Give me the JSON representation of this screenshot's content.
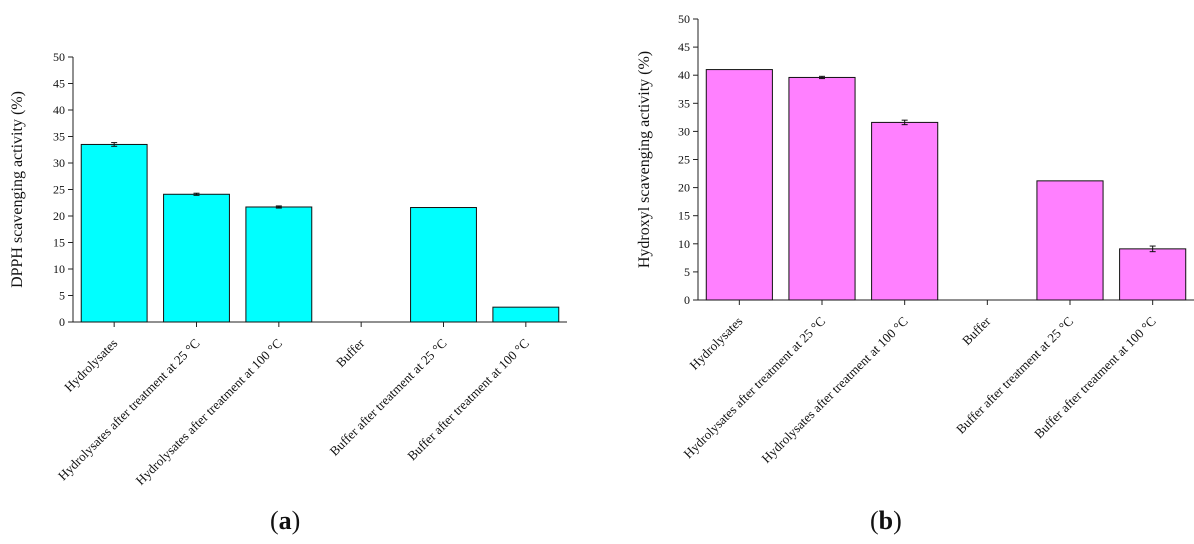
{
  "chart_data": [
    {
      "type": "bar",
      "panel_caption_open": "(",
      "panel_caption_letter": "a",
      "panel_caption_close": ")",
      "ylabel": "DPPH scavenging activity (%)",
      "ylim": [
        0,
        50
      ],
      "yticks": [
        "0",
        "5",
        "10",
        "15",
        "20",
        "25",
        "30",
        "35",
        "40",
        "45",
        "50"
      ],
      "bar_color": "#00ffff",
      "categories": [
        "Hydrolysates",
        "Hydrolysates after treatment at 25 °C",
        "Hydrolysates after treatment at 100 °C",
        "Buffer",
        "Buffer after treatment at 25 °C",
        "Buffer after treatment at 100 °C"
      ],
      "values": [
        33.5,
        24.1,
        21.7,
        0,
        21.6,
        2.8
      ],
      "errors": [
        0.35,
        0.2,
        0.2,
        0,
        0,
        0
      ]
    },
    {
      "type": "bar",
      "panel_caption_open": "(",
      "panel_caption_letter": "b",
      "panel_caption_close": ")",
      "ylabel": "Hydroxyl scavenging activity (%)",
      "ylim": [
        0,
        50
      ],
      "yticks": [
        "0",
        "5",
        "10",
        "15",
        "20",
        "25",
        "30",
        "35",
        "40",
        "45",
        "50"
      ],
      "bar_color": "#ff80ff",
      "categories": [
        "Hydrolysates",
        "Hydrolysates after treatment at 25 °C",
        "Hydrolysates after treatment at 100 °C",
        "Buffer",
        "Buffer after treatment at 25 °C",
        "Buffer after treatment at 100 °C"
      ],
      "values": [
        41.0,
        39.6,
        31.6,
        0,
        21.2,
        9.1
      ],
      "errors": [
        0,
        0.2,
        0.4,
        0,
        0,
        0.5
      ]
    }
  ]
}
